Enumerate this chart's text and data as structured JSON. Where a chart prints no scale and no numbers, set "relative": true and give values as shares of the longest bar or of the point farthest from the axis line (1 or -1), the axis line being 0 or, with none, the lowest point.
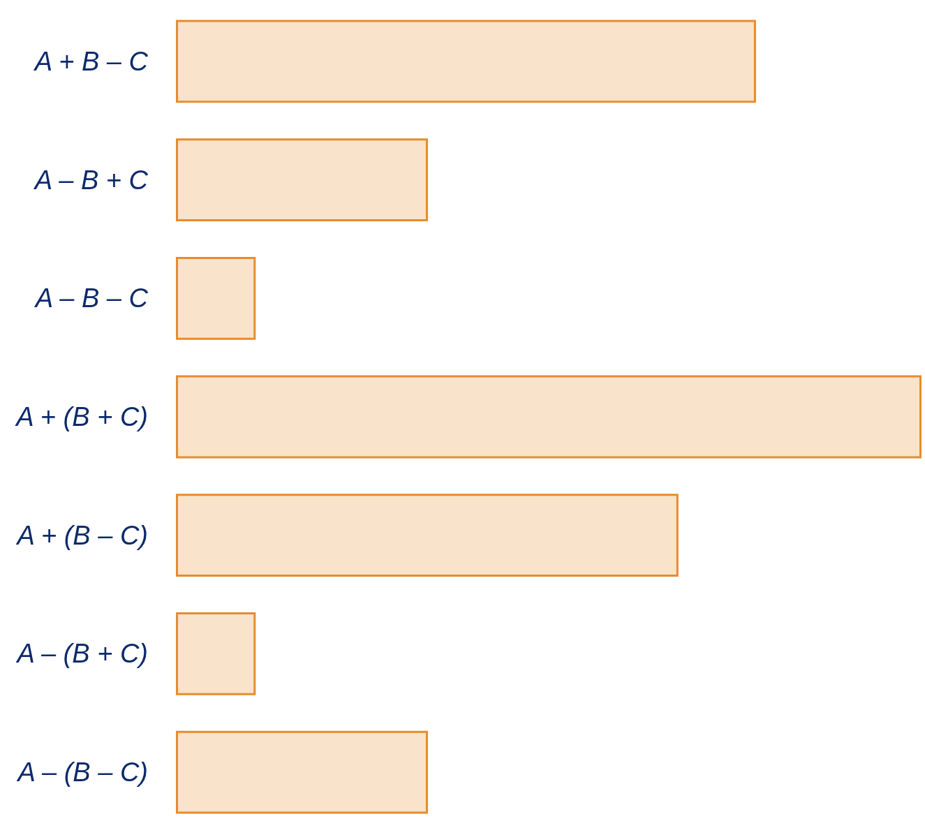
{
  "chart_data": {
    "type": "bar",
    "orientation": "horizontal",
    "relative": true,
    "categories": [
      "A + B – C",
      "A – B + C",
      "A – B – C",
      "A + (B + C)",
      "A + (B – C)",
      "A – (B + C)",
      "A – (B – C)"
    ],
    "values": [
      0.778,
      0.338,
      0.107,
      1,
      0.674,
      0.107,
      0.338
    ],
    "color": "#f9e3ca"
  }
}
